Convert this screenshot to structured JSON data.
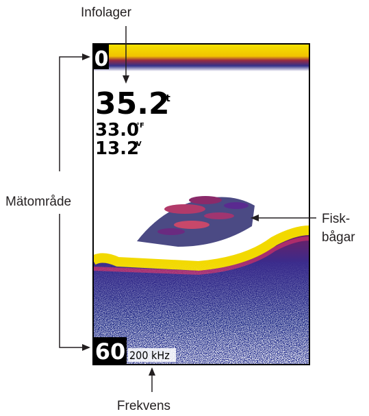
{
  "labels": {
    "info_layer": "Infolager",
    "range": "Mätområde",
    "fish_arches": [
      "Fisk-",
      "bågar"
    ],
    "frequency": "Frekvens"
  },
  "screen": {
    "depth_top": "0",
    "depth": "35.2",
    "depth_unit": "ft",
    "temperature": "33.0",
    "temperature_unit": "°F",
    "voltage": "13.2",
    "voltage_unit": "V",
    "depth_bottom": "60",
    "frequency": "200 kHz"
  }
}
